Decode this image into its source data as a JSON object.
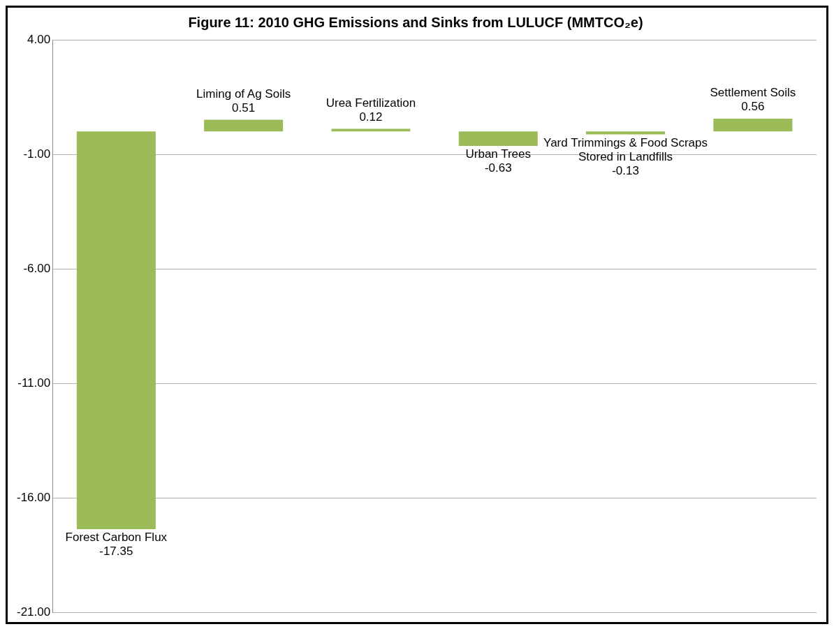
{
  "chart_data": {
    "type": "bar",
    "title": "Figure 11: 2010 GHG Emissions and Sinks from LULUCF (MMTCO₂e)",
    "categories": [
      "Forest Carbon Flux",
      "Liming of Ag Soils",
      "Urea Fertilization",
      "Urban Trees",
      "Yard Trimmings & Food Scraps Stored in Landfills",
      "Settlement Soils"
    ],
    "values": [
      -17.35,
      0.51,
      0.12,
      -0.63,
      -0.13,
      0.56
    ],
    "color": "#9bbb59",
    "ylim": [
      -21,
      4
    ],
    "yticks": [
      {
        "value": 4,
        "label": "4.00"
      },
      {
        "value": -1,
        "label": "-1.00"
      },
      {
        "value": -6,
        "label": "-6.00"
      },
      {
        "value": -11,
        "label": "-11.00"
      },
      {
        "value": -16,
        "label": "-16.00"
      },
      {
        "value": -21,
        "label": "-21.00"
      }
    ],
    "grid": "y",
    "data_labels": true,
    "legend": false
  }
}
